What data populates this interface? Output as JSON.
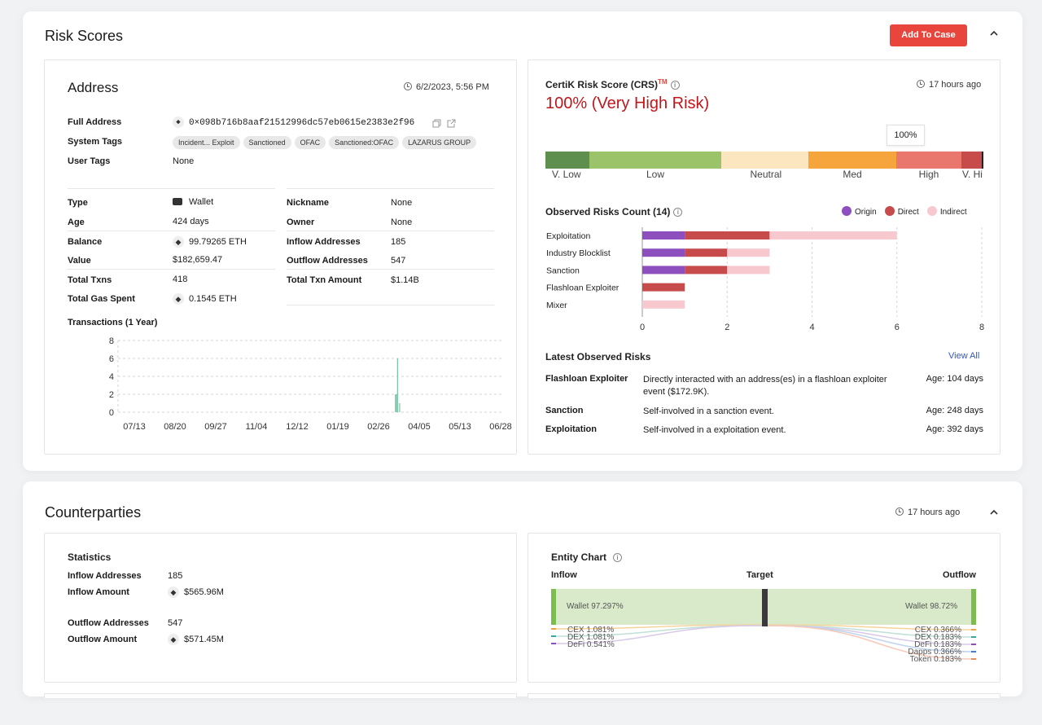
{
  "risk_scores": {
    "title": "Risk Scores",
    "add_button": "Add To Case",
    "address_card": {
      "title": "Address",
      "timestamp": "6/2/2023, 5:56 PM",
      "full_address_label": "Full Address",
      "full_address": "0×098b716b8aaf21512996dc57eb0615e2383e2f96",
      "system_tags_label": "System Tags",
      "system_tags": [
        "Incident... Exploit",
        "Sanctioned",
        "OFAC",
        "Sanctioned:OFAC",
        "LAZARUS GROUP"
      ],
      "user_tags_label": "User Tags",
      "user_tags_value": "None",
      "left_fields": [
        {
          "label": "Type",
          "value": "Wallet"
        },
        {
          "label": "Age",
          "value": "424 days"
        },
        {
          "label": "Balance",
          "value": "99.79265 ETH"
        },
        {
          "label": "Value",
          "value": "$182,659.47"
        },
        {
          "label": "Total Txns",
          "value": "418"
        },
        {
          "label": "Total Gas Spent",
          "value": "0.1545 ETH"
        }
      ],
      "right_fields": [
        {
          "label": "Nickname",
          "value": "None"
        },
        {
          "label": "Owner",
          "value": "None"
        },
        {
          "label": "Inflow Addresses",
          "value": "185"
        },
        {
          "label": "Outflow Addresses",
          "value": "547"
        },
        {
          "label": "Total Txn Amount",
          "value": "$1.14B"
        }
      ],
      "tx_chart_title": "Transactions (1 Year)"
    },
    "crs_card": {
      "title": "CertiK Risk Score (CRS)",
      "tm": "TM",
      "updated": "17 hours ago",
      "score": "100% (Very High Risk)",
      "gauge_value_label": "100%",
      "gauge_value": 1.0,
      "gauge_segments": [
        {
          "label": "V. Low",
          "color": "#5f8f4e"
        },
        {
          "label": "Low",
          "color": "#9bc46a"
        },
        {
          "label": "Neutral",
          "color": "#fbe6c0"
        },
        {
          "label": "Med",
          "color": "#f6a53c"
        },
        {
          "label": "High",
          "color": "#e9776e"
        },
        {
          "label": "V. Hi",
          "color": "#c84b4b"
        }
      ],
      "observed_title": "Observed Risks Count (14)",
      "legend": [
        {
          "label": "Origin",
          "color": "#8e4fbe"
        },
        {
          "label": "Direct",
          "color": "#c84b4b"
        },
        {
          "label": "Indirect",
          "color": "#f8c8cf"
        }
      ],
      "latest_title": "Latest Observed Risks",
      "view_all": "View All",
      "latest": [
        {
          "name": "Flashloan Exploiter",
          "desc": "Directly interacted with an address(es) in a flashloan exploiter event ($172.9K).",
          "age": "Age: 104 days"
        },
        {
          "name": "Sanction",
          "desc": "Self-involved in a sanction event.",
          "age": "Age: 248 days"
        },
        {
          "name": "Exploitation",
          "desc": "Self-involved in a exploitation event.",
          "age": "Age: 392 days"
        }
      ]
    }
  },
  "counterparties": {
    "title": "Counterparties",
    "updated": "17 hours ago",
    "statistics": {
      "title": "Statistics",
      "inflow_addresses_label": "Inflow Addresses",
      "inflow_addresses": "185",
      "inflow_amount_label": "Inflow Amount",
      "inflow_amount": "$565.96M",
      "outflow_addresses_label": "Outflow Addresses",
      "outflow_addresses": "547",
      "outflow_amount_label": "Outflow Amount",
      "outflow_amount": "$571.45M"
    },
    "entity_chart": {
      "title": "Entity Chart",
      "inflow": "Inflow",
      "target": "Target",
      "outflow": "Outflow",
      "inflow_wallet": "Wallet 97.297%",
      "outflow_wallet": "Wallet 98.72%",
      "inflow_items": [
        "CEX 1.081%",
        "DEX 1.081%",
        "DeFi 0.541%"
      ],
      "outflow_items": [
        "CEX 0.366%",
        "DEX 0.183%",
        "DeFi 0.183%",
        "Dapps 0.366%",
        "Token 0.183%"
      ]
    }
  },
  "chart_data": [
    {
      "type": "bar",
      "title": "Transactions (1 Year)",
      "x_ticks": [
        "07/13",
        "08/20",
        "09/27",
        "11/04",
        "12/12",
        "01/19",
        "02/26",
        "04/05",
        "05/13",
        "06/28"
      ],
      "y_ticks": [
        0,
        2,
        4,
        6,
        8
      ],
      "ylim": [
        0,
        8
      ],
      "bars": [
        {
          "x": "03/19",
          "value": 2
        },
        {
          "x": "03/20",
          "value": 2
        },
        {
          "x": "03/21",
          "value": 6
        },
        {
          "x": "03/23",
          "value": 1
        }
      ],
      "color": "#7fc8a9",
      "grid": true
    },
    {
      "type": "bar",
      "orientation": "horizontal",
      "stacked": true,
      "title": "Observed Risks Count (14)",
      "categories": [
        "Exploitation",
        "Industry Blocklist",
        "Sanction",
        "Flashloan Exploiter",
        "Mixer"
      ],
      "series": [
        {
          "name": "Origin",
          "values": [
            1,
            1,
            1,
            0,
            0
          ]
        },
        {
          "name": "Direct",
          "values": [
            2,
            1,
            1,
            1,
            0
          ]
        },
        {
          "name": "Indirect",
          "values": [
            3,
            1,
            1,
            0,
            1
          ]
        }
      ],
      "x_ticks": [
        0,
        2,
        4,
        6,
        8
      ],
      "xlim": [
        0,
        8
      ],
      "legend": "top-right"
    }
  ]
}
